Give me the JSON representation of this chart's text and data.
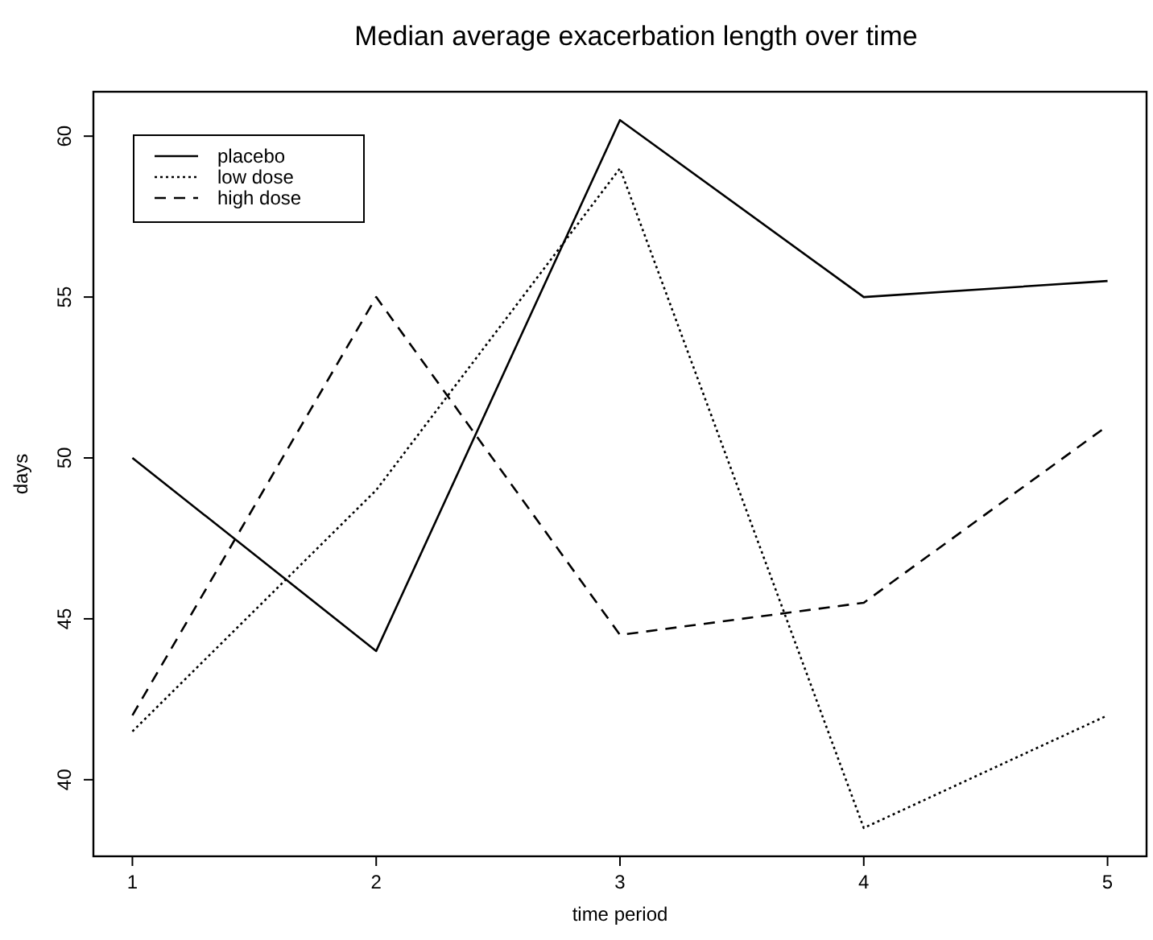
{
  "chart_data": {
    "type": "line",
    "title": "Median average exacerbation length over time",
    "xlabel": "time period",
    "ylabel": "days",
    "x": [
      1,
      2,
      3,
      4,
      5
    ],
    "series": [
      {
        "name": "placebo",
        "color": "#000000",
        "line_style": "solid",
        "values": [
          50,
          44,
          60.5,
          55,
          55.5
        ]
      },
      {
        "name": "low dose",
        "color": "#000000",
        "line_style": "dotted",
        "values": [
          41.5,
          49,
          59,
          38.5,
          42
        ]
      },
      {
        "name": "high dose",
        "color": "#000000",
        "line_style": "dashed",
        "values": [
          42,
          55,
          44.5,
          45.5,
          51
        ]
      }
    ],
    "xlim": [
      0.84,
      5.16
    ],
    "xticks": [
      1,
      2,
      3,
      4,
      5
    ],
    "ylim": [
      37.62,
      61.38
    ],
    "yticks": [
      40,
      45,
      50,
      55,
      60
    ],
    "grid": false,
    "legend": "top left",
    "marker": "none"
  }
}
